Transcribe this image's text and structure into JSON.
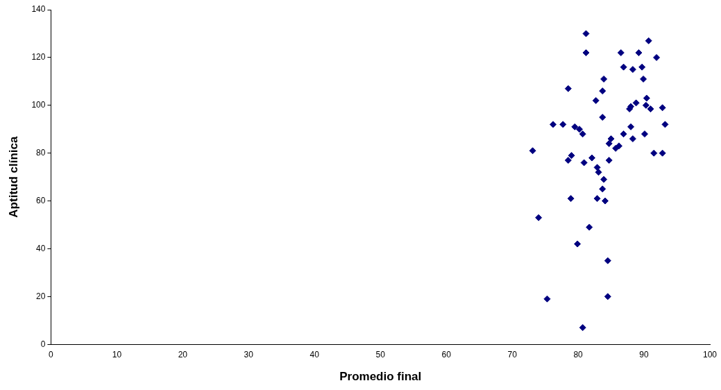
{
  "chart_data": {
    "type": "scatter",
    "xlabel": "Promedio final",
    "ylabel": "Aptitud clínica",
    "xlim": [
      0,
      100
    ],
    "xticks": [
      0,
      10,
      20,
      30,
      40,
      50,
      60,
      70,
      80,
      90,
      100
    ],
    "ylim": [
      0,
      140
    ],
    "yticks": [
      0,
      20,
      40,
      60,
      80,
      100,
      120,
      140
    ],
    "grid": false,
    "legend": false,
    "marker": "diamond",
    "series": [
      {
        "color": "#000080",
        "x": [
          81.2,
          90.7,
          81.2,
          86.5,
          89.2,
          91.9,
          86.9,
          88.3,
          89.7,
          83.9,
          89.9,
          78.5,
          83.7,
          82.7,
          90.4,
          88.0,
          88.8,
          87.8,
          90.3,
          91.0,
          92.8,
          83.7,
          76.2,
          77.7,
          79.5,
          80.2,
          80.7,
          88.0,
          86.9,
          88.3,
          90.1,
          85.0,
          84.7,
          86.2,
          85.7,
          73.1,
          91.5,
          92.8,
          79.0,
          78.5,
          80.9,
          82.1,
          84.7,
          82.9,
          83.1,
          83.9,
          83.7,
          78.9,
          82.9,
          84.1,
          74.0,
          81.7,
          79.9,
          84.5,
          75.3,
          84.5,
          80.7,
          93.2
        ],
        "values": [
          130,
          127,
          122,
          122,
          122,
          120,
          116,
          115,
          116,
          111,
          111,
          107,
          106,
          102,
          103,
          99.5,
          101,
          98.5,
          100,
          98.5,
          99,
          95,
          92,
          92,
          91,
          90,
          88,
          91,
          88,
          86,
          88,
          86,
          84,
          83,
          82,
          81,
          80,
          80,
          79,
          77,
          76,
          78,
          77,
          74,
          72,
          69,
          65,
          61,
          61,
          60,
          53,
          49,
          42,
          35,
          19,
          20,
          7,
          92
        ]
      }
    ]
  }
}
